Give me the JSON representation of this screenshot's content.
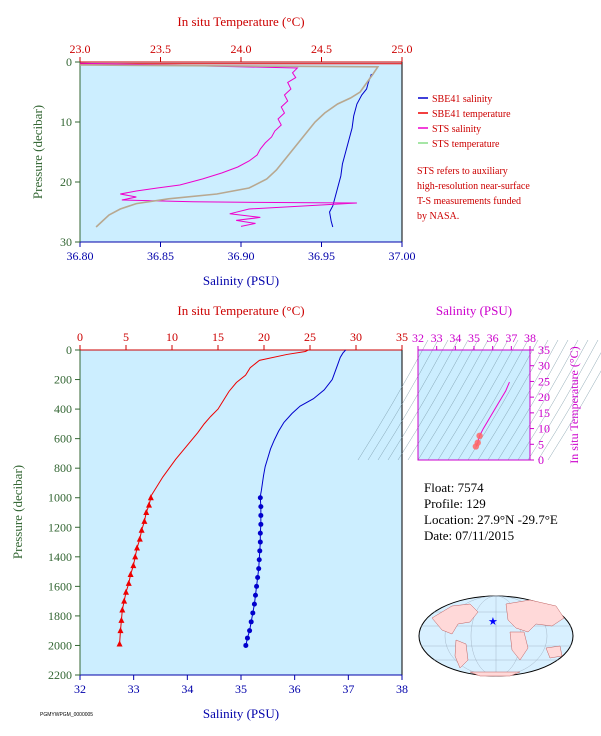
{
  "colors": {
    "salinity": "#0000cc",
    "temperature": "#ee0000",
    "sts_salinity": "#ee00cc",
    "sts_temperature": "#88dd88",
    "plot_bg": "#cceeff",
    "ts_axis": "#cc00cc",
    "pressure_axis": "#336633"
  },
  "chart_data": [
    {
      "type": "line",
      "id": "near-surface",
      "x_top_label": "In situ Temperature (°C)",
      "x_top_ticks": [
        "23.0",
        "23.5",
        "24.0",
        "24.5",
        "25.0"
      ],
      "x_top_lim": [
        23.0,
        25.0
      ],
      "x_bottom_label": "Salinity (PSU)",
      "x_bottom_ticks": [
        "36.80",
        "36.85",
        "36.90",
        "36.95",
        "37.00"
      ],
      "x_bottom_lim": [
        36.8,
        37.0
      ],
      "ylabel": "Pressure (decibar)",
      "y_ticks": [
        "0",
        "10",
        "20",
        "30"
      ],
      "ylim": [
        0,
        30
      ],
      "legend": [
        {
          "name": "SBE41 salinity",
          "color": "#0000cc"
        },
        {
          "name": "SBE41 temperature",
          "color": "#ee0000"
        },
        {
          "name": "STS salinity",
          "color": "#ee00cc"
        },
        {
          "name": "STS temperature",
          "color": "#88dd88"
        }
      ],
      "note": [
        "STS refers to auxiliary",
        "high-resolution near-surface",
        "T-S measurements funded",
        "by NASA."
      ],
      "series": [
        {
          "name": "SBE41 salinity",
          "axis": "bottom",
          "x": [
            36.981,
            36.979,
            36.978,
            36.975,
            36.972,
            36.97,
            36.969,
            36.967,
            36.965,
            36.963,
            36.962,
            36.96,
            36.958,
            36.957,
            36.955,
            36.956,
            36.957
          ],
          "y": [
            2.0,
            3.5,
            4.5,
            5.5,
            7.0,
            9.0,
            11.0,
            13.0,
            15.0,
            17.0,
            19.0,
            21.0,
            23.0,
            24.0,
            25.0,
            26.5,
            27.5
          ]
        },
        {
          "name": "SBE41 temperature",
          "axis": "top",
          "x": [
            23.0,
            25.0
          ],
          "y": [
            0.3,
            0.3
          ]
        },
        {
          "name": "STS salinity",
          "axis": "bottom",
          "x": [
            36.8,
            36.935,
            36.932,
            36.934,
            36.929,
            36.931,
            36.927,
            36.929,
            36.925,
            36.927,
            36.923,
            36.925,
            36.921,
            36.919,
            36.915,
            36.912,
            36.91,
            36.905,
            36.898,
            36.888,
            36.876,
            36.862,
            36.848,
            36.835,
            36.825,
            36.835,
            36.826,
            36.87,
            36.91,
            36.972,
            36.905,
            36.893,
            36.912,
            36.897,
            36.909,
            36.9
          ],
          "y": [
            0.2,
            1.0,
            1.8,
            2.6,
            3.4,
            4.5,
            5.5,
            6.5,
            7.5,
            8.5,
            9.5,
            10.5,
            11.5,
            12.5,
            13.5,
            14.5,
            15.5,
            16.5,
            17.5,
            18.5,
            19.5,
            20.5,
            21.0,
            21.5,
            22.0,
            22.5,
            23.0,
            23.3,
            23.4,
            23.5,
            24.5,
            25.3,
            25.9,
            26.4,
            26.9,
            27.4
          ]
        },
        {
          "name": "STS temperature",
          "axis": "top",
          "x": [
            23.0,
            24.85,
            24.82,
            24.78,
            24.74,
            24.68,
            24.6,
            24.52,
            24.46,
            24.4,
            24.34,
            24.28,
            24.22,
            24.16,
            24.05,
            23.85,
            23.55,
            23.35,
            23.25,
            23.18,
            23.14,
            23.1
          ],
          "y": [
            0.5,
            0.8,
            2.0,
            3.5,
            5.0,
            6.0,
            7.0,
            8.5,
            10.0,
            12.0,
            14.0,
            16.0,
            18.0,
            19.5,
            21.0,
            22.0,
            22.8,
            23.6,
            24.5,
            25.5,
            26.5,
            27.5
          ]
        }
      ]
    },
    {
      "type": "line",
      "id": "full-profile",
      "x_top_label": "In situ Temperature (°C)",
      "x_top_ticks": [
        "0",
        "5",
        "10",
        "15",
        "20",
        "25",
        "30",
        "35"
      ],
      "x_top_lim": [
        0,
        35
      ],
      "x_bottom_label": "Salinity (PSU)",
      "x_bottom_ticks": [
        "32",
        "33",
        "34",
        "35",
        "36",
        "37",
        "38"
      ],
      "x_bottom_lim": [
        32,
        38
      ],
      "ylabel": "Pressure (decibar)",
      "y_ticks": [
        "0",
        "200",
        "400",
        "600",
        "800",
        "1000",
        "1200",
        "1400",
        "1600",
        "1800",
        "2000",
        "2200"
      ],
      "ylim": [
        0,
        2200
      ],
      "series": [
        {
          "name": "Temperature",
          "axis": "top",
          "x": [
            24.8,
            24.5,
            22.5,
            19.5,
            18.5,
            18.0,
            17.0,
            16.2,
            15.6,
            15.0,
            14.2,
            13.5,
            12.8,
            12.0,
            11.2,
            10.4,
            9.7,
            9.0,
            8.3,
            7.7
          ],
          "y": [
            0,
            10,
            30,
            70,
            120,
            170,
            220,
            280,
            340,
            400,
            450,
            500,
            560,
            620,
            680,
            740,
            800,
            860,
            930,
            990
          ]
        },
        {
          "name": "Temperature (bottle/discrete)",
          "axis": "top",
          "marker": "triangle",
          "x": [
            7.7,
            7.5,
            7.2,
            7.0,
            6.7,
            6.5,
            6.2,
            6.0,
            5.8,
            5.5,
            5.3,
            5.0,
            4.8,
            4.6,
            4.5,
            4.4,
            4.3
          ],
          "y": [
            1000,
            1050,
            1100,
            1160,
            1220,
            1280,
            1340,
            1400,
            1460,
            1520,
            1580,
            1640,
            1700,
            1760,
            1830,
            1900,
            1990
          ]
        },
        {
          "name": "Salinity",
          "axis": "bottom",
          "x": [
            36.95,
            36.9,
            36.85,
            36.8,
            36.75,
            36.7,
            36.55,
            36.35,
            36.1,
            35.95,
            35.8,
            35.7,
            35.62,
            35.55,
            35.5,
            35.45,
            35.42,
            35.4,
            35.38,
            35.36
          ],
          "y": [
            0,
            20,
            50,
            100,
            150,
            200,
            270,
            330,
            380,
            430,
            490,
            550,
            610,
            670,
            730,
            790,
            850,
            900,
            950,
            990
          ]
        },
        {
          "name": "Salinity (discrete)",
          "axis": "bottom",
          "marker": "circle",
          "x": [
            35.36,
            35.37,
            35.37,
            35.37,
            35.36,
            35.36,
            35.35,
            35.34,
            35.33,
            35.31,
            35.29,
            35.27,
            35.25,
            35.22,
            35.19,
            35.16,
            35.12,
            35.09
          ],
          "y": [
            1000,
            1060,
            1120,
            1180,
            1240,
            1300,
            1360,
            1420,
            1480,
            1540,
            1600,
            1660,
            1720,
            1780,
            1840,
            1900,
            1950,
            2000
          ]
        }
      ]
    },
    {
      "type": "line",
      "id": "ts-diagram",
      "x_top_label": "Salinity (PSU)",
      "x_top_ticks": [
        "32",
        "33",
        "34",
        "35",
        "36",
        "37",
        "38"
      ],
      "x_top_lim": [
        32,
        38
      ],
      "y_right_label": "In situ Temperature (°C)",
      "y_ticks": [
        "0",
        "5",
        "10",
        "15",
        "20",
        "25",
        "30",
        "35"
      ],
      "ylim": [
        0,
        35
      ],
      "series": [
        {
          "name": "T-S",
          "x": [
            35.1,
            35.2,
            35.3,
            35.5,
            35.9,
            36.3,
            36.7,
            36.9
          ],
          "y": [
            4.3,
            5.5,
            7.7,
            10,
            14,
            18,
            22,
            24.8
          ]
        }
      ]
    }
  ],
  "float_info": {
    "float": "Float:  7574",
    "profile": "Profile:  129",
    "location": "Location:  27.9°N  -29.7°E",
    "date": "Date:  07/11/2015"
  },
  "footer": "PGMYWPGM_0000005"
}
